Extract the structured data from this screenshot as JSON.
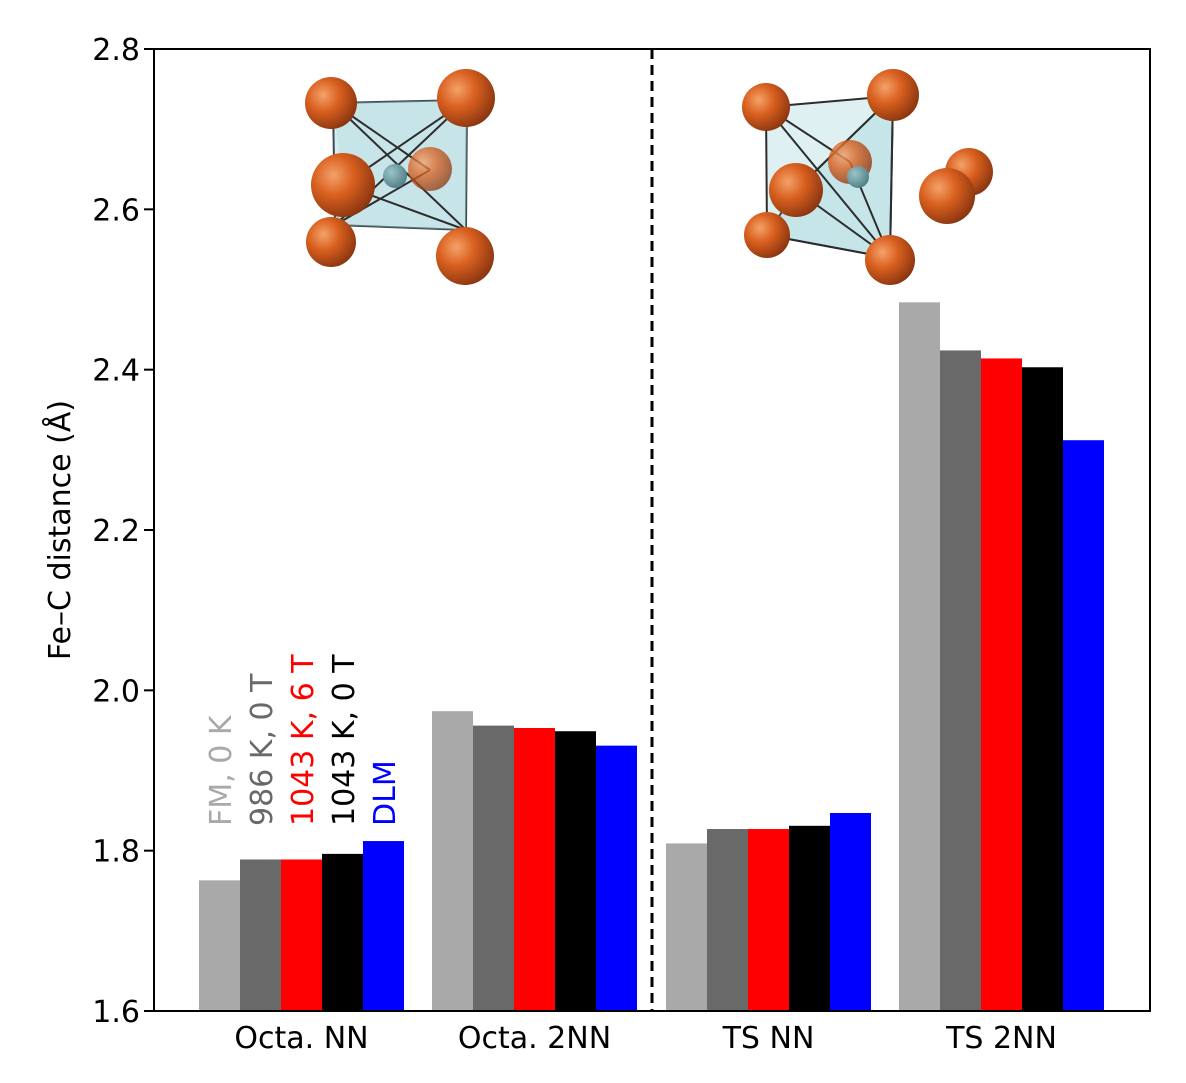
{
  "chart_data": {
    "type": "bar",
    "title": "",
    "xlabel": "",
    "ylabel": "Fe–C distance (Å)",
    "ylim": [
      1.6,
      2.8
    ],
    "yticks": [
      1.6,
      1.8,
      2.0,
      2.2,
      2.4,
      2.6,
      2.8
    ],
    "ytick_labels": [
      "1.6",
      "1.8",
      "2.0",
      "2.2",
      "2.4",
      "2.6",
      "2.8"
    ],
    "categories": [
      "Octa. NN",
      "Octa. 2NN",
      "TS NN",
      "TS 2NN"
    ],
    "series": [
      {
        "name": "FM, 0 K",
        "color": "#a9a9a9",
        "values": [
          1.763,
          1.974,
          1.809,
          2.484
        ]
      },
      {
        "name": "986 K, 0 T",
        "color": "#696969",
        "values": [
          1.789,
          1.956,
          1.827,
          2.424
        ]
      },
      {
        "name": "1043 K, 6 T",
        "color": "#ff0000",
        "values": [
          1.789,
          1.953,
          1.827,
          2.414
        ]
      },
      {
        "name": "1043 K, 0 T",
        "color": "#000000",
        "values": [
          1.796,
          1.949,
          1.831,
          2.403
        ]
      },
      {
        "name": "DLM",
        "color": "#0000ff",
        "values": [
          1.812,
          1.931,
          1.847,
          2.312
        ]
      }
    ],
    "divider": "dashed vertical line between Octa. 2NN and TS NN",
    "insets": [
      "octahedral site cluster",
      "transition state cluster"
    ]
  }
}
